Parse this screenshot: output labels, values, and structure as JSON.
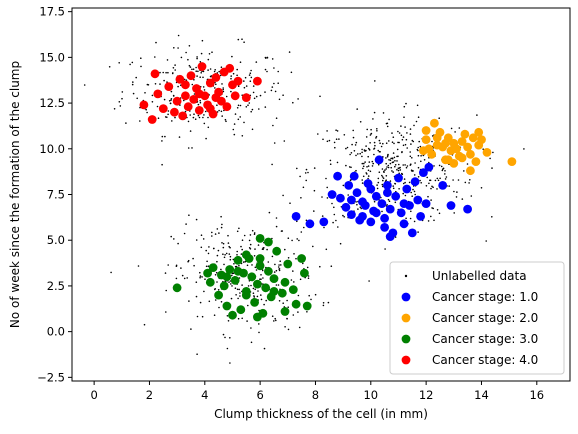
{
  "chart_data": {
    "type": "scatter",
    "title": "",
    "xlabel": "Clump thickness of the cell (in mm)",
    "ylabel": "No of week since the formation of the clump",
    "xlim": [
      -0.8,
      17.2
    ],
    "ylim": [
      -2.7,
      17.7
    ],
    "xticks": [
      0,
      2,
      4,
      6,
      8,
      10,
      12,
      14,
      16
    ],
    "yticks": [
      -2.5,
      0.0,
      2.5,
      5.0,
      7.5,
      10.0,
      12.5,
      15.0,
      17.5
    ],
    "xtick_labels": [
      "0",
      "2",
      "4",
      "6",
      "8",
      "10",
      "12",
      "14",
      "16"
    ],
    "ytick_labels": [
      "−2.5",
      "0.0",
      "2.5",
      "5.0",
      "7.5",
      "10.0",
      "12.5",
      "15.0",
      "17.5"
    ],
    "grid": false,
    "legend_position": "lower-right",
    "series": [
      {
        "name": "Unlabelled data",
        "marker": "dot",
        "color": "#000000",
        "clusters": [
          {
            "center": [
              4.0,
              13.2
            ],
            "spread": [
              1.5,
              1.2
            ],
            "count": 300
          },
          {
            "center": [
              10.8,
              8.8
            ],
            "spread": [
              1.5,
              1.5
            ],
            "count": 450
          },
          {
            "center": [
              5.5,
              3.0
            ],
            "spread": [
              1.3,
              1.5
            ],
            "count": 330
          }
        ]
      },
      {
        "name": "Cancer stage: 1.0",
        "color": "#0000ff",
        "points": [
          [
            7.3,
            6.3
          ],
          [
            7.8,
            5.9
          ],
          [
            8.3,
            6.0
          ],
          [
            8.6,
            7.5
          ],
          [
            8.8,
            8.5
          ],
          [
            8.9,
            7.3
          ],
          [
            9.1,
            6.8
          ],
          [
            9.2,
            8.0
          ],
          [
            9.3,
            6.4
          ],
          [
            9.4,
            8.5
          ],
          [
            9.5,
            7.6
          ],
          [
            9.6,
            6.1
          ],
          [
            9.7,
            7.1
          ],
          [
            9.8,
            6.9
          ],
          [
            9.9,
            8.1
          ],
          [
            10.0,
            7.8
          ],
          [
            10.1,
            6.6
          ],
          [
            10.2,
            7.4
          ],
          [
            10.3,
            9.4
          ],
          [
            10.4,
            7.0
          ],
          [
            10.5,
            6.2
          ],
          [
            10.6,
            8.0
          ],
          [
            10.7,
            6.7
          ],
          [
            10.8,
            5.4
          ],
          [
            10.9,
            7.4
          ],
          [
            11.0,
            8.4
          ],
          [
            11.1,
            6.5
          ],
          [
            11.2,
            5.9
          ],
          [
            11.3,
            7.8
          ],
          [
            11.4,
            6.9
          ],
          [
            11.5,
            5.4
          ],
          [
            11.6,
            8.2
          ],
          [
            11.7,
            7.2
          ],
          [
            11.8,
            6.3
          ],
          [
            11.9,
            8.7
          ],
          [
            12.0,
            7.0
          ],
          [
            12.1,
            9.0
          ],
          [
            10.6,
            7.6
          ],
          [
            10.2,
            6.5
          ],
          [
            9.7,
            6.3
          ],
          [
            10.5,
            5.7
          ],
          [
            11.2,
            7.0
          ],
          [
            12.6,
            8.0
          ],
          [
            12.9,
            6.9
          ],
          [
            13.5,
            6.7
          ],
          [
            10.0,
            6.0
          ],
          [
            10.7,
            5.2
          ],
          [
            9.3,
            7.2
          ]
        ]
      },
      {
        "name": "Cancer stage: 2.0",
        "color": "#ffa500",
        "points": [
          [
            11.9,
            9.9
          ],
          [
            12.0,
            10.5
          ],
          [
            12.1,
            10.0
          ],
          [
            12.2,
            9.7
          ],
          [
            12.3,
            11.4
          ],
          [
            12.4,
            10.2
          ],
          [
            12.5,
            10.9
          ],
          [
            12.6,
            10.1
          ],
          [
            12.7,
            9.4
          ],
          [
            12.8,
            10.6
          ],
          [
            12.9,
            9.9
          ],
          [
            13.0,
            10.3
          ],
          [
            13.1,
            10.0
          ],
          [
            13.2,
            9.6
          ],
          [
            13.3,
            10.4
          ],
          [
            13.4,
            10.8
          ],
          [
            13.5,
            10.1
          ],
          [
            13.6,
            9.7
          ],
          [
            13.7,
            10.6
          ],
          [
            13.8,
            9.3
          ],
          [
            13.9,
            10.2
          ],
          [
            14.0,
            10.5
          ],
          [
            14.2,
            9.8
          ],
          [
            13.6,
            8.8
          ],
          [
            15.1,
            9.3
          ],
          [
            12.4,
            10.6
          ],
          [
            13.0,
            9.2
          ],
          [
            13.9,
            10.9
          ],
          [
            12.8,
            9.4
          ],
          [
            13.3,
            9.5
          ],
          [
            12.0,
            11.0
          ],
          [
            12.7,
            10.3
          ]
        ]
      },
      {
        "name": "Cancer stage: 3.0",
        "color": "#008000",
        "points": [
          [
            3.0,
            2.4
          ],
          [
            4.1,
            3.2
          ],
          [
            4.2,
            2.7
          ],
          [
            4.3,
            3.5
          ],
          [
            4.5,
            2.0
          ],
          [
            4.6,
            3.1
          ],
          [
            4.7,
            2.5
          ],
          [
            4.8,
            1.4
          ],
          [
            4.9,
            3.4
          ],
          [
            5.0,
            0.9
          ],
          [
            5.1,
            2.8
          ],
          [
            5.2,
            3.9
          ],
          [
            5.3,
            1.2
          ],
          [
            5.4,
            3.2
          ],
          [
            5.5,
            2.2
          ],
          [
            5.6,
            4.0
          ],
          [
            5.7,
            3.0
          ],
          [
            5.8,
            1.6
          ],
          [
            5.9,
            2.6
          ],
          [
            6.0,
            3.6
          ],
          [
            6.1,
            1.0
          ],
          [
            6.2,
            2.4
          ],
          [
            6.3,
            3.3
          ],
          [
            6.4,
            1.9
          ],
          [
            6.5,
            2.9
          ],
          [
            6.6,
            4.4
          ],
          [
            6.8,
            2.1
          ],
          [
            6.9,
            1.1
          ],
          [
            7.0,
            3.7
          ],
          [
            7.2,
            2.3
          ],
          [
            7.5,
            4.0
          ],
          [
            7.6,
            3.2
          ],
          [
            6.0,
            5.1
          ],
          [
            6.3,
            4.9
          ],
          [
            7.3,
            1.5
          ],
          [
            7.7,
            1.4
          ],
          [
            5.5,
            4.2
          ],
          [
            5.9,
            0.8
          ],
          [
            6.5,
            2.2
          ],
          [
            4.8,
            3.0
          ],
          [
            5.2,
            3.3
          ],
          [
            6.0,
            4.0
          ],
          [
            6.9,
            2.7
          ],
          [
            5.5,
            2.0
          ]
        ]
      },
      {
        "name": "Cancer stage: 4.0",
        "color": "#ff0000",
        "points": [
          [
            1.8,
            12.4
          ],
          [
            2.1,
            11.6
          ],
          [
            2.3,
            13.0
          ],
          [
            2.5,
            12.2
          ],
          [
            2.7,
            13.4
          ],
          [
            2.9,
            12.0
          ],
          [
            3.0,
            12.6
          ],
          [
            3.1,
            13.8
          ],
          [
            3.2,
            11.8
          ],
          [
            3.3,
            12.9
          ],
          [
            3.4,
            12.3
          ],
          [
            3.5,
            14.0
          ],
          [
            3.6,
            12.7
          ],
          [
            3.7,
            13.3
          ],
          [
            3.8,
            12.1
          ],
          [
            3.9,
            14.5
          ],
          [
            4.0,
            12.9
          ],
          [
            4.1,
            12.4
          ],
          [
            4.2,
            13.6
          ],
          [
            4.3,
            11.9
          ],
          [
            4.4,
            12.8
          ],
          [
            4.5,
            13.1
          ],
          [
            4.6,
            12.6
          ],
          [
            4.7,
            14.2
          ],
          [
            4.8,
            12.3
          ],
          [
            4.9,
            14.4
          ],
          [
            5.0,
            13.5
          ],
          [
            5.1,
            12.9
          ],
          [
            5.2,
            13.7
          ],
          [
            5.5,
            12.8
          ],
          [
            5.9,
            13.7
          ],
          [
            2.2,
            14.1
          ],
          [
            3.8,
            13.0
          ],
          [
            4.2,
            12.2
          ],
          [
            3.3,
            13.5
          ],
          [
            4.4,
            13.9
          ]
        ]
      }
    ]
  }
}
